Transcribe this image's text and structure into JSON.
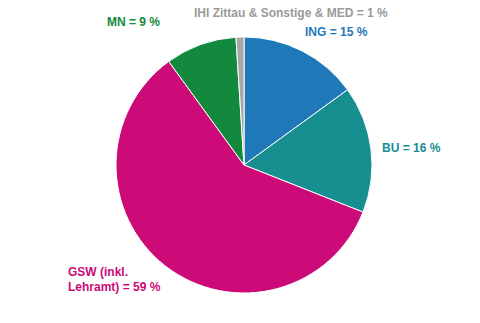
{
  "chart_data": {
    "type": "pie",
    "categories": [
      "ING",
      "BU",
      "GSW",
      "MN",
      "IHI Zittau & Sonstige & MED"
    ],
    "values": [
      15,
      16,
      59,
      9,
      1
    ],
    "value_labels": [
      "ING = 15 %",
      "BU = 16 %",
      "GSW (inkl.\nLehramt) = 59 %",
      "MN = 9 %",
      "IHI Zittau & Sonstige & MED = 1 %"
    ],
    "colors": [
      "#1f79b8",
      "#178e90",
      "#cc0a78",
      "#12893d",
      "#a6a6a6"
    ],
    "data_labels": true
  }
}
